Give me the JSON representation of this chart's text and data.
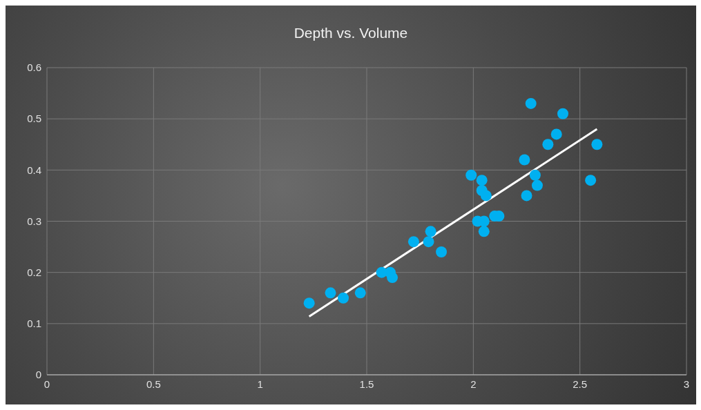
{
  "chart_data": {
    "type": "scatter",
    "title": "Depth vs. Volume",
    "xlim": [
      0,
      3
    ],
    "xticks": [
      0,
      0.5,
      1,
      1.5,
      2,
      2.5,
      3
    ],
    "ylim": [
      0,
      0.6
    ],
    "yticks": [
      0,
      0.1,
      0.2,
      0.3,
      0.4,
      0.5,
      0.6
    ],
    "grid": true,
    "legend": false,
    "series": [
      {
        "type": "scatter",
        "marker": "circle",
        "color": "#00b0f0",
        "x": [
          1.23,
          1.33,
          1.39,
          1.47,
          1.57,
          1.61,
          1.62,
          1.72,
          1.79,
          1.8,
          1.85,
          1.99,
          2.02,
          2.04,
          2.04,
          2.06,
          2.05,
          2.05,
          2.1,
          2.12,
          2.24,
          2.25,
          2.27,
          2.29,
          2.3,
          2.35,
          2.39,
          2.42,
          2.55,
          2.58
        ],
        "values": [
          0.14,
          0.16,
          0.15,
          0.16,
          0.2,
          0.2,
          0.19,
          0.26,
          0.26,
          0.28,
          0.24,
          0.39,
          0.3,
          0.38,
          0.36,
          0.35,
          0.3,
          0.28,
          0.31,
          0.31,
          0.42,
          0.35,
          0.53,
          0.39,
          0.37,
          0.45,
          0.47,
          0.51,
          0.38,
          0.45
        ]
      },
      {
        "type": "line",
        "marker": "none",
        "line_style": "solid",
        "color": "#ffffff",
        "x": [
          1.23,
          2.58
        ],
        "values": [
          0.114,
          0.48
        ]
      }
    ]
  }
}
